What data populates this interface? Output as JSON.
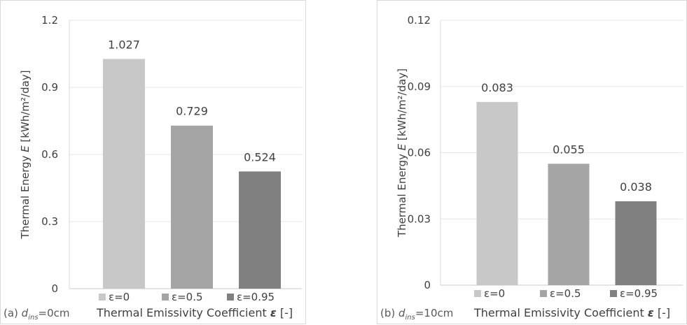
{
  "chart_data": [
    {
      "type": "bar",
      "panel_label": "(a)",
      "panel_condition": "d_ins=0cm",
      "panel_condition_parts": {
        "var": "d",
        "sub": "ins",
        "value": "=0cm"
      },
      "categories": [
        "ε=0",
        "ε=0.5",
        "ε=0.95"
      ],
      "values": [
        1.027,
        0.729,
        0.524
      ],
      "data_labels": [
        "1.027",
        "0.729",
        "0.524"
      ],
      "colors": [
        "#c8c8c8",
        "#a5a5a5",
        "#808080"
      ],
      "ylim": [
        0,
        1.2
      ],
      "yticks": [
        "0",
        "0.3",
        "0.6",
        "0.9",
        "1.2"
      ],
      "ytick_values": [
        0,
        0.3,
        0.6,
        0.9,
        1.2
      ],
      "ylabel": "Thermal Energy E [kWh/m²/day]",
      "ylabel_parts": {
        "text": "Thermal Energy ",
        "symbol": "E",
        "unit": " [kWh/m²/day]"
      },
      "xlabel": "Thermal Emissivity Coefficient ε [-]",
      "xlabel_parts": {
        "text": "Thermal Emissivity Coefficient ",
        "symbol": "ε",
        "unit": " [-]"
      },
      "grid": true,
      "legend_position": "bottom"
    },
    {
      "type": "bar",
      "panel_label": "(b)",
      "panel_condition": "d_ins=10cm",
      "panel_condition_parts": {
        "var": "d",
        "sub": "ins",
        "value": "=10cm"
      },
      "categories": [
        "ε=0",
        "ε=0.5",
        "ε=0.95"
      ],
      "values": [
        0.083,
        0.055,
        0.038
      ],
      "data_labels": [
        "0.083",
        "0.055",
        "0.038"
      ],
      "colors": [
        "#c8c8c8",
        "#a5a5a5",
        "#808080"
      ],
      "ylim": [
        0,
        0.12
      ],
      "yticks": [
        "0",
        "0.03",
        "0.06",
        "0.09",
        "0.12"
      ],
      "ytick_values": [
        0,
        0.03,
        0.06,
        0.09,
        0.12
      ],
      "ylabel": "Thermal Energy E [kWh/m²/day]",
      "ylabel_parts": {
        "text": "Thermal Energy ",
        "symbol": "E",
        "unit": " [kWh/m²/day]"
      },
      "xlabel": "Thermal Emissivity Coefficient ε [-]",
      "xlabel_parts": {
        "text": "Thermal Emissivity Coefficient ",
        "symbol": "ε",
        "unit": " [-]"
      },
      "grid": true,
      "legend_position": "bottom"
    }
  ]
}
